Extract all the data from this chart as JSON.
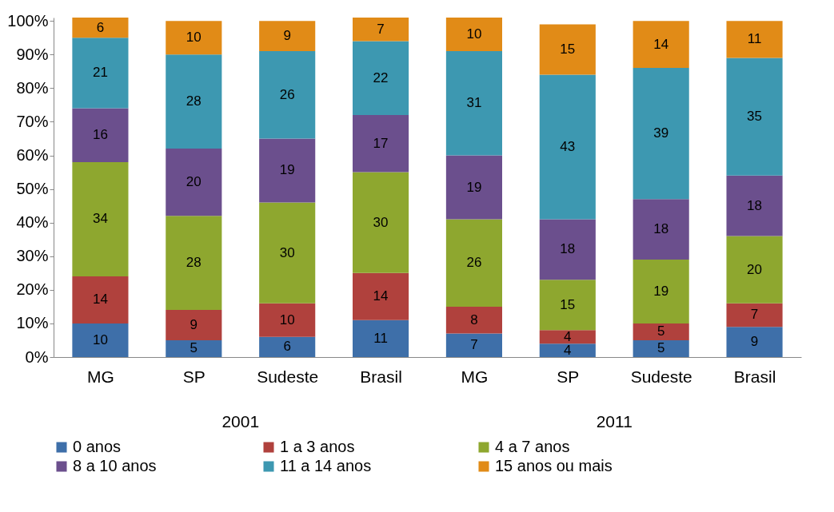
{
  "chart_data": {
    "type": "bar",
    "stacked": true,
    "data_labels": true,
    "legend": "bottom",
    "grid": false,
    "categories": [
      "MG",
      "SP",
      "Sudeste",
      "Brasil",
      "MG",
      "SP",
      "Sudeste",
      "Brasil"
    ],
    "annotations": [
      "2001",
      "2011"
    ],
    "ylim": [
      0,
      101
    ],
    "yticks": [
      {
        "value": 0,
        "label": "0%"
      },
      {
        "value": 10,
        "label": "10%"
      },
      {
        "value": 20,
        "label": "20%"
      },
      {
        "value": 30,
        "label": "30%"
      },
      {
        "value": 40,
        "label": "40%"
      },
      {
        "value": 50,
        "label": "50%"
      },
      {
        "value": 60,
        "label": "60%"
      },
      {
        "value": 70,
        "label": "70%"
      },
      {
        "value": 80,
        "label": "80%"
      },
      {
        "value": 90,
        "label": "90%"
      },
      {
        "value": 100,
        "label": "100%"
      }
    ],
    "series": [
      {
        "name": "0 anos",
        "color": "#3e6fa9",
        "values": [
          10,
          5,
          6,
          11,
          7,
          4,
          5,
          9
        ]
      },
      {
        "name": "1 a 3 anos",
        "color": "#b0413d",
        "values": [
          14,
          9,
          10,
          14,
          8,
          4,
          5,
          7
        ]
      },
      {
        "name": "4 a 7 anos",
        "color": "#8ea72f",
        "values": [
          34,
          28,
          30,
          30,
          26,
          15,
          19,
          20
        ]
      },
      {
        "name": "8 a 10 anos",
        "color": "#6b4f8d",
        "values": [
          16,
          20,
          19,
          17,
          19,
          18,
          18,
          18
        ]
      },
      {
        "name": "11 a 14 anos",
        "color": "#3d98b1",
        "values": [
          21,
          28,
          26,
          22,
          31,
          43,
          39,
          35
        ]
      },
      {
        "name": "15 anos ou mais",
        "color": "#e18b17",
        "values": [
          6,
          10,
          9,
          7,
          10,
          15,
          14,
          11
        ]
      }
    ]
  }
}
